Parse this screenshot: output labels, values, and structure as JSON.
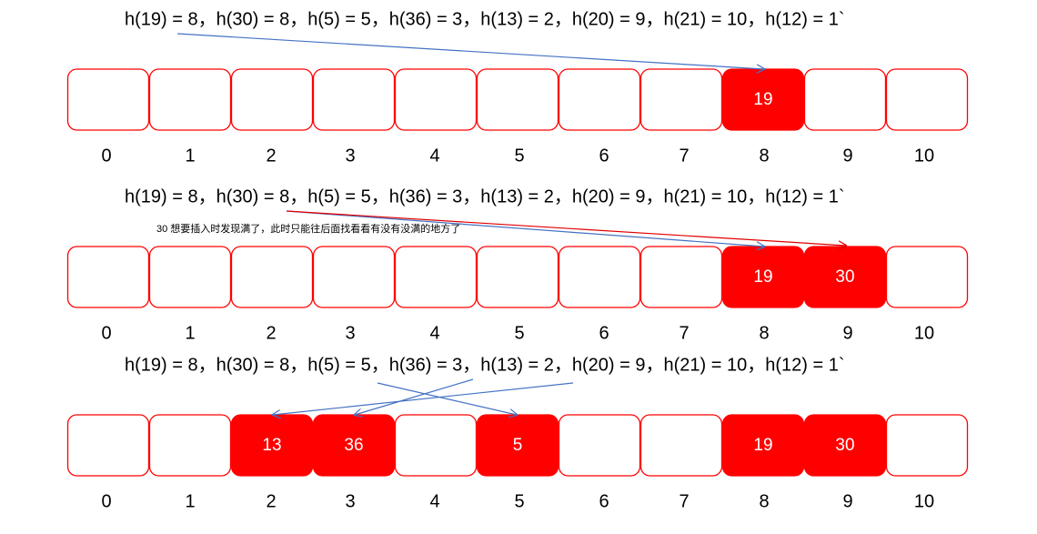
{
  "rows": [
    {
      "formula": "h(19) = 8，h(30) = 8，h(5) = 5，h(36) = 3，h(13) = 2，h(20) = 9，h(21) = 10，h(12) = 1`",
      "indices": [
        0,
        1,
        2,
        3,
        4,
        5,
        6,
        7,
        8,
        9,
        10
      ],
      "cells": [
        null,
        null,
        null,
        null,
        null,
        null,
        null,
        null,
        19,
        null,
        null
      ]
    },
    {
      "formula": "h(19) = 8，h(30) = 8，h(5) = 5，h(36) = 3，h(13) = 2，h(20) = 9，h(21) = 10，h(12) = 1`",
      "note": "30 想要插入时发现满了，此时只能往后面找看看有没有没满的地方了",
      "indices": [
        0,
        1,
        2,
        3,
        4,
        5,
        6,
        7,
        8,
        9,
        10
      ],
      "cells": [
        null,
        null,
        null,
        null,
        null,
        null,
        null,
        null,
        19,
        30,
        null
      ]
    },
    {
      "formula": "h(19) = 8，h(30) = 8，h(5) = 5，h(36) = 3，h(13) = 2，h(20) = 9，h(21) = 10，h(12) = 1`",
      "indices": [
        0,
        1,
        2,
        3,
        4,
        5,
        6,
        7,
        8,
        9,
        10
      ],
      "cells": [
        null,
        null,
        13,
        36,
        null,
        5,
        null,
        null,
        19,
        30,
        null
      ]
    }
  ]
}
